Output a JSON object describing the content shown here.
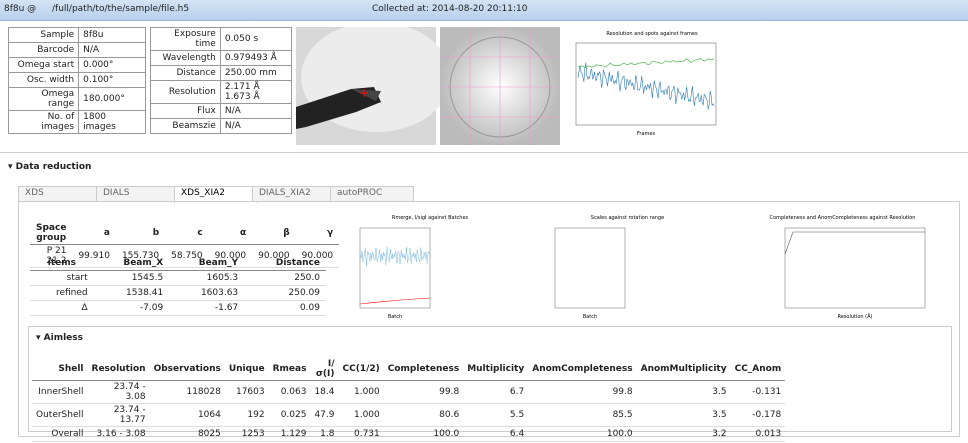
{
  "header": {
    "sample": "8f8u @",
    "path": "/full/path/to/the/sample/file.h5",
    "collected": "Collected at: 2014-08-20 20:11:10"
  },
  "info_left": [
    [
      "Sample",
      "8f8u"
    ],
    [
      "Barcode",
      "N/A"
    ],
    [
      "Omega start",
      "0.000°"
    ],
    [
      "Osc. width",
      "0.100°"
    ],
    [
      "Omega range",
      "180.000°"
    ],
    [
      "No. of images",
      "1800 images"
    ]
  ],
  "info_right": [
    [
      "Exposure time",
      "0.050 s"
    ],
    [
      "Wavelength",
      "0.979493 Å"
    ],
    [
      "Distance",
      "250.00 mm"
    ],
    [
      "Resolution",
      "2.171 Å 1.673 Å"
    ],
    [
      "Flux",
      "N/A"
    ],
    [
      "Beamszie",
      "N/A"
    ]
  ],
  "thumb_chart": {
    "title": "Resolution and spots against frames",
    "x_label": "Frames"
  },
  "section": "Data reduction",
  "tabs": [
    "XDS",
    "DIALS",
    "XDS_XIA2",
    "DIALS_XIA2",
    "autoPROC"
  ],
  "cell_table": {
    "headers": [
      "Space group",
      "a",
      "b",
      "c",
      "α",
      "β",
      "γ"
    ],
    "rows": [
      [
        "P 21 21 2",
        "99.910",
        "155.730",
        "58.750",
        "90.000",
        "90.000",
        "90.000"
      ]
    ]
  },
  "beam_table": {
    "headers": [
      "items",
      "Beam_X",
      "Beam_Y",
      "Distance"
    ],
    "rows": [
      [
        "start",
        "1545.5",
        "1605.3",
        "250.0"
      ],
      [
        "refined",
        "1538.41",
        "1603.63",
        "250.09"
      ],
      [
        "Δ",
        "-7.09",
        "-1.67",
        "0.09"
      ]
    ]
  },
  "plots": [
    {
      "title": "Rmerge, I/sigI against Batches",
      "x_label": "Batch"
    },
    {
      "title": "Scales against rotation range",
      "x_label": "Batch"
    },
    {
      "title": "Completeness and AnomCompleteness against Resolution",
      "x_label": "Resolution (Å)"
    }
  ],
  "aimless": {
    "title": "Aimless",
    "headers": [
      "Shell",
      "Resolution",
      "Observations",
      "Unique",
      "Rmeas",
      "I/σ(I)",
      "CC(1/2)",
      "Completeness",
      "Multiplicity",
      "AnomCompleteness",
      "AnomMultiplicity",
      "CC_Anom"
    ],
    "rows": [
      [
        "InnerShell",
        "23.74 - 3.08",
        "118028",
        "17603",
        "0.063",
        "18.4",
        "1.000",
        "99.8",
        "6.7",
        "99.8",
        "3.5",
        "-0.131"
      ],
      [
        "OuterShell",
        "23.74 - 13.77",
        "1064",
        "192",
        "0.025",
        "47.9",
        "1.000",
        "80.6",
        "5.5",
        "85.5",
        "3.5",
        "-0.178"
      ],
      [
        "Overall",
        "3.16 - 3.08",
        "8025",
        "1253",
        "1.129",
        "1.8",
        "0.731",
        "100.0",
        "6.4",
        "100.0",
        "3.2",
        "0.013"
      ]
    ]
  }
}
